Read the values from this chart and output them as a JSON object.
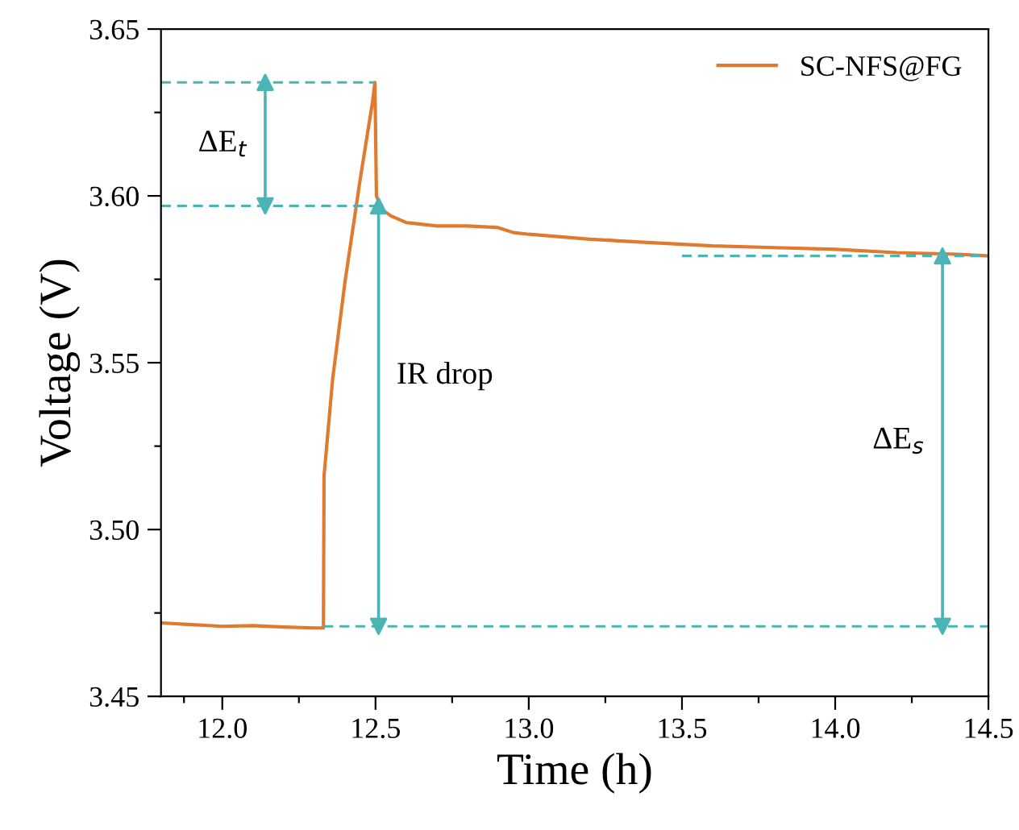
{
  "chart_data": {
    "type": "line",
    "xlabel": "Time (h)",
    "ylabel": "Voltage (V)",
    "xlim": [
      11.8,
      14.5
    ],
    "ylim": [
      3.45,
      3.65
    ],
    "xticks": [
      {
        "value": 11.875,
        "label": null
      },
      {
        "value": 12.0,
        "label": "12.0"
      },
      {
        "value": 12.25,
        "label": null
      },
      {
        "value": 12.5,
        "label": "12.5"
      },
      {
        "value": 12.75,
        "label": null
      },
      {
        "value": 13.0,
        "label": "13.0"
      },
      {
        "value": 13.25,
        "label": null
      },
      {
        "value": 13.5,
        "label": "13.5"
      },
      {
        "value": 13.75,
        "label": null
      },
      {
        "value": 14.0,
        "label": "14.0"
      },
      {
        "value": 14.25,
        "label": null
      },
      {
        "value": 14.5,
        "label": "14.5"
      }
    ],
    "yticks": [
      {
        "value": 3.45,
        "label": "3.45"
      },
      {
        "value": 3.475,
        "label": null
      },
      {
        "value": 3.5,
        "label": "3.50"
      },
      {
        "value": 3.525,
        "label": null
      },
      {
        "value": 3.55,
        "label": "3.55"
      },
      {
        "value": 3.575,
        "label": null
      },
      {
        "value": 3.6,
        "label": "3.60"
      },
      {
        "value": 3.625,
        "label": null
      },
      {
        "value": 3.65,
        "label": "3.65"
      }
    ],
    "legend": "top right",
    "grid": false,
    "series": [
      {
        "name": "SC-NFS@FG",
        "color": "#e07a2e",
        "line_style": "solid",
        "x": [
          11.8,
          11.9,
          12.0,
          12.1,
          12.2,
          12.3,
          12.33,
          12.332,
          12.36,
          12.4,
          12.45,
          12.49,
          12.498,
          12.503,
          12.52,
          12.55,
          12.6,
          12.7,
          12.8,
          12.9,
          12.95,
          13.0,
          13.2,
          13.4,
          13.6,
          13.8,
          14.0,
          14.2,
          14.4,
          14.5
        ],
        "values": [
          3.472,
          3.4715,
          3.471,
          3.4712,
          3.4708,
          3.4705,
          3.4705,
          3.516,
          3.545,
          3.574,
          3.605,
          3.628,
          3.634,
          3.6,
          3.596,
          3.594,
          3.592,
          3.591,
          3.591,
          3.5905,
          3.589,
          3.5885,
          3.587,
          3.586,
          3.585,
          3.5845,
          3.584,
          3.583,
          3.5825,
          3.582
        ]
      },
      {
        "color": "#4bb5b5",
        "line_style": "dashed",
        "x": [
          11.8,
          12.5
        ],
        "values": [
          3.634,
          3.634
        ]
      },
      {
        "color": "#4bb5b5",
        "line_style": "dashed",
        "x": [
          11.8,
          12.52
        ],
        "values": [
          3.597,
          3.597
        ]
      },
      {
        "color": "#4bb5b5",
        "line_style": "dashed",
        "x": [
          12.33,
          14.5
        ],
        "values": [
          3.471,
          3.471
        ]
      },
      {
        "color": "#4bb5b5",
        "line_style": "dashed",
        "x": [
          13.5,
          14.5
        ],
        "values": [
          3.582,
          3.582
        ]
      },
      {
        "color": "#4bb5b5",
        "line_style": "solid",
        "marker": "triangle",
        "x": [
          12.14,
          12.14
        ],
        "values": [
          3.597,
          3.634
        ]
      },
      {
        "color": "#4bb5b5",
        "line_style": "solid",
        "marker": "triangle",
        "x": [
          12.51,
          12.51
        ],
        "values": [
          3.471,
          3.597
        ]
      },
      {
        "color": "#4bb5b5",
        "line_style": "solid",
        "marker": "triangle",
        "x": [
          14.35,
          14.35
        ],
        "values": [
          3.471,
          3.582
        ]
      }
    ],
    "annotations": [
      "ΔE$_{t}$",
      "IR drop",
      "ΔE$_{s}$"
    ]
  }
}
